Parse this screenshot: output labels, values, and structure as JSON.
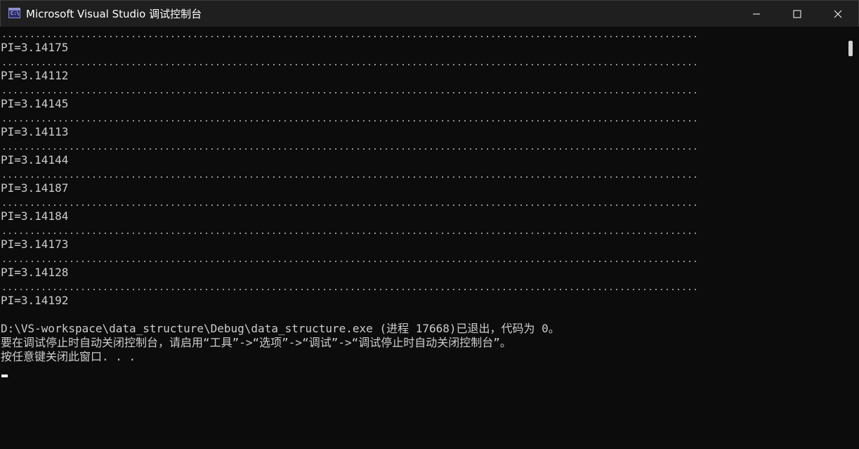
{
  "window": {
    "title": "Microsoft Visual Studio 调试控制台",
    "icon": "console-app-icon",
    "icon_glyph": "C:\\",
    "controls": [
      "minimize-icon",
      "maximize-icon",
      "close-icon"
    ]
  },
  "console": {
    "pi_lines": [
      "PI=3.14175",
      "PI=3.14112",
      "PI=3.14145",
      "PI=3.14113",
      "PI=3.14144",
      "PI=3.14187",
      "PI=3.14184",
      "PI=3.14173",
      "PI=3.14128",
      "PI=3.14192"
    ],
    "exit_message": "D:\\VS-workspace\\data_structure\\Debug\\data_structure.exe (进程 17668)已退出，代码为 0。",
    "close_hint": "要在调试停止时自动关闭控制台，请启用“工具”->“选项”->“调试”->“调试停止时自动关闭控制台”。",
    "press_key": "按任意键关闭此窗口. . ."
  },
  "colors": {
    "background": "#0c0c0c",
    "titlebar": "#1f1f1f",
    "text": "#cccccc"
  }
}
